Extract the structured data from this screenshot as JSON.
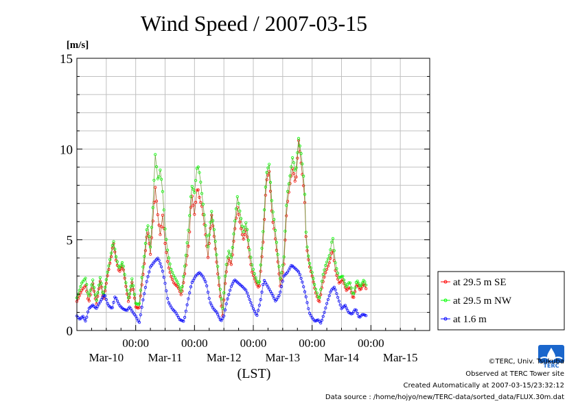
{
  "chart_data": {
    "type": "line",
    "title": "Wind Speed / 2007-03-15",
    "ylabel": "[m/s]",
    "xlabel": "(LST)",
    "ylim": [
      0,
      15
    ],
    "yticks": [
      0,
      5,
      10,
      15
    ],
    "xlim_days": [
      0,
      6
    ],
    "time_labels": [
      "00:00",
      "00:00",
      "00:00",
      "00:00",
      "00:00"
    ],
    "date_labels": [
      "Mar-10",
      "Mar-11",
      "Mar-12",
      "Mar-13",
      "Mar-14",
      "Mar-15"
    ],
    "grid": true,
    "legend_position": "right",
    "series": [
      {
        "name": "at 29.5 m SE",
        "color": "#ff0000",
        "anchors": [
          [
            0.0,
            1.6
          ],
          [
            0.08,
            2.2
          ],
          [
            0.15,
            2.5
          ],
          [
            0.2,
            1.5
          ],
          [
            0.27,
            2.6
          ],
          [
            0.33,
            1.4
          ],
          [
            0.4,
            2.8
          ],
          [
            0.45,
            1.6
          ],
          [
            0.52,
            3.0
          ],
          [
            0.58,
            4.0
          ],
          [
            0.62,
            4.9
          ],
          [
            0.67,
            3.8
          ],
          [
            0.72,
            3.2
          ],
          [
            0.78,
            3.6
          ],
          [
            0.83,
            2.5
          ],
          [
            0.88,
            1.5
          ],
          [
            0.94,
            2.7
          ],
          [
            1.0,
            1.3
          ],
          [
            1.06,
            1.2
          ],
          [
            1.1,
            2.4
          ],
          [
            1.15,
            3.8
          ],
          [
            1.2,
            5.6
          ],
          [
            1.25,
            4.2
          ],
          [
            1.3,
            6.4
          ],
          [
            1.33,
            8.0
          ],
          [
            1.38,
            6.2
          ],
          [
            1.42,
            5.2
          ],
          [
            1.46,
            6.4
          ],
          [
            1.5,
            4.8
          ],
          [
            1.55,
            3.6
          ],
          [
            1.6,
            3.0
          ],
          [
            1.65,
            2.6
          ],
          [
            1.72,
            2.4
          ],
          [
            1.78,
            1.9
          ],
          [
            1.85,
            3.5
          ],
          [
            1.91,
            5.0
          ],
          [
            1.95,
            7.6
          ],
          [
            2.0,
            6.4
          ],
          [
            2.05,
            8.0
          ],
          [
            2.09,
            7.2
          ],
          [
            2.13,
            6.8
          ],
          [
            2.18,
            5.5
          ],
          [
            2.23,
            4.0
          ],
          [
            2.29,
            6.4
          ],
          [
            2.34,
            5.0
          ],
          [
            2.38,
            3.6
          ],
          [
            2.44,
            1.8
          ],
          [
            2.48,
            0.8
          ],
          [
            2.53,
            3.0
          ],
          [
            2.58,
            4.0
          ],
          [
            2.63,
            3.6
          ],
          [
            2.68,
            5.4
          ],
          [
            2.73,
            6.8
          ],
          [
            2.78,
            5.8
          ],
          [
            2.83,
            5.0
          ],
          [
            2.88,
            5.6
          ],
          [
            2.93,
            4.2
          ],
          [
            2.98,
            3.2
          ],
          [
            3.05,
            2.6
          ],
          [
            3.1,
            2.3
          ],
          [
            3.17,
            5.0
          ],
          [
            3.22,
            8.2
          ],
          [
            3.27,
            8.8
          ],
          [
            3.32,
            6.2
          ],
          [
            3.36,
            5.5
          ],
          [
            3.41,
            4.0
          ],
          [
            3.46,
            2.4
          ],
          [
            3.52,
            3.6
          ],
          [
            3.57,
            6.8
          ],
          [
            3.62,
            8.0
          ],
          [
            3.67,
            9.0
          ],
          [
            3.72,
            8.0
          ],
          [
            3.77,
            10.5
          ],
          [
            3.82,
            9.0
          ],
          [
            3.87,
            7.5
          ],
          [
            3.9,
            4.8
          ],
          [
            3.95,
            3.6
          ],
          [
            4.0,
            3.0
          ],
          [
            4.05,
            2.2
          ],
          [
            4.12,
            1.5
          ],
          [
            4.18,
            2.6
          ],
          [
            4.23,
            3.2
          ],
          [
            4.3,
            3.8
          ],
          [
            4.35,
            4.5
          ],
          [
            4.4,
            3.2
          ],
          [
            4.46,
            2.6
          ],
          [
            4.52,
            2.8
          ],
          [
            4.58,
            2.2
          ],
          [
            4.64,
            2.4
          ],
          [
            4.7,
            1.7
          ],
          [
            4.76,
            2.6
          ],
          [
            4.82,
            2.2
          ],
          [
            4.88,
            2.6
          ],
          [
            4.93,
            2.2
          ]
        ]
      },
      {
        "name": "at 29.5 m NW",
        "color": "#00ff00",
        "anchors": [
          [
            0.0,
            1.8
          ],
          [
            0.08,
            2.6
          ],
          [
            0.15,
            2.9
          ],
          [
            0.2,
            1.8
          ],
          [
            0.27,
            2.8
          ],
          [
            0.33,
            1.6
          ],
          [
            0.4,
            3.0
          ],
          [
            0.45,
            1.8
          ],
          [
            0.52,
            3.2
          ],
          [
            0.58,
            4.2
          ],
          [
            0.62,
            5.0
          ],
          [
            0.67,
            4.0
          ],
          [
            0.72,
            3.4
          ],
          [
            0.78,
            3.8
          ],
          [
            0.83,
            2.7
          ],
          [
            0.88,
            1.7
          ],
          [
            0.94,
            2.9
          ],
          [
            1.0,
            1.5
          ],
          [
            1.06,
            1.4
          ],
          [
            1.1,
            2.8
          ],
          [
            1.15,
            4.2
          ],
          [
            1.2,
            6.0
          ],
          [
            1.25,
            4.6
          ],
          [
            1.3,
            7.2
          ],
          [
            1.33,
            9.8
          ],
          [
            1.38,
            8.2
          ],
          [
            1.42,
            8.9
          ],
          [
            1.46,
            7.6
          ],
          [
            1.5,
            5.6
          ],
          [
            1.55,
            4.2
          ],
          [
            1.6,
            3.4
          ],
          [
            1.65,
            3.0
          ],
          [
            1.72,
            2.6
          ],
          [
            1.78,
            2.1
          ],
          [
            1.85,
            4.0
          ],
          [
            1.91,
            6.0
          ],
          [
            1.95,
            8.0
          ],
          [
            2.0,
            7.6
          ],
          [
            2.05,
            9.2
          ],
          [
            2.09,
            8.6
          ],
          [
            2.13,
            7.4
          ],
          [
            2.18,
            6.0
          ],
          [
            2.23,
            4.6
          ],
          [
            2.29,
            6.6
          ],
          [
            2.34,
            5.4
          ],
          [
            2.38,
            4.0
          ],
          [
            2.44,
            2.2
          ],
          [
            2.48,
            1.2
          ],
          [
            2.53,
            3.4
          ],
          [
            2.58,
            4.4
          ],
          [
            2.63,
            4.0
          ],
          [
            2.68,
            5.8
          ],
          [
            2.73,
            7.4
          ],
          [
            2.78,
            6.4
          ],
          [
            2.83,
            5.4
          ],
          [
            2.88,
            6.0
          ],
          [
            2.93,
            4.6
          ],
          [
            2.98,
            3.6
          ],
          [
            3.05,
            2.8
          ],
          [
            3.1,
            2.5
          ],
          [
            3.17,
            5.6
          ],
          [
            3.22,
            8.6
          ],
          [
            3.27,
            9.2
          ],
          [
            3.32,
            6.8
          ],
          [
            3.36,
            6.0
          ],
          [
            3.41,
            4.4
          ],
          [
            3.46,
            2.8
          ],
          [
            3.52,
            4.0
          ],
          [
            3.57,
            7.4
          ],
          [
            3.62,
            8.4
          ],
          [
            3.67,
            9.6
          ],
          [
            3.72,
            8.6
          ],
          [
            3.77,
            10.6
          ],
          [
            3.82,
            9.6
          ],
          [
            3.87,
            8.0
          ],
          [
            3.9,
            5.0
          ],
          [
            3.95,
            3.8
          ],
          [
            4.0,
            3.2
          ],
          [
            4.05,
            2.4
          ],
          [
            4.12,
            1.7
          ],
          [
            4.18,
            3.0
          ],
          [
            4.23,
            3.6
          ],
          [
            4.3,
            4.2
          ],
          [
            4.35,
            5.2
          ],
          [
            4.4,
            3.6
          ],
          [
            4.46,
            2.9
          ],
          [
            4.52,
            3.0
          ],
          [
            4.58,
            2.4
          ],
          [
            4.64,
            2.7
          ],
          [
            4.7,
            1.9
          ],
          [
            4.76,
            2.8
          ],
          [
            4.82,
            2.4
          ],
          [
            4.88,
            2.8
          ],
          [
            4.93,
            2.4
          ]
        ]
      },
      {
        "name": "at 1.6 m",
        "color": "#0000ff",
        "anchors": [
          [
            0.0,
            0.8
          ],
          [
            0.05,
            0.6
          ],
          [
            0.1,
            0.8
          ],
          [
            0.15,
            0.5
          ],
          [
            0.2,
            1.2
          ],
          [
            0.27,
            1.4
          ],
          [
            0.33,
            1.2
          ],
          [
            0.4,
            1.6
          ],
          [
            0.47,
            2.0
          ],
          [
            0.53,
            1.4
          ],
          [
            0.6,
            1.2
          ],
          [
            0.65,
            1.9
          ],
          [
            0.72,
            1.4
          ],
          [
            0.78,
            1.2
          ],
          [
            0.85,
            1.1
          ],
          [
            0.9,
            1.3
          ],
          [
            0.95,
            1.0
          ],
          [
            1.0,
            0.8
          ],
          [
            1.06,
            0.4
          ],
          [
            1.12,
            1.6
          ],
          [
            1.18,
            2.6
          ],
          [
            1.25,
            3.5
          ],
          [
            1.32,
            3.8
          ],
          [
            1.38,
            4.0
          ],
          [
            1.45,
            3.4
          ],
          [
            1.5,
            2.6
          ],
          [
            1.55,
            1.6
          ],
          [
            1.62,
            1.2
          ],
          [
            1.68,
            1.0
          ],
          [
            1.75,
            0.6
          ],
          [
            1.82,
            0.5
          ],
          [
            1.88,
            1.5
          ],
          [
            1.95,
            2.6
          ],
          [
            2.02,
            3.0
          ],
          [
            2.08,
            3.2
          ],
          [
            2.14,
            3.0
          ],
          [
            2.2,
            2.6
          ],
          [
            2.26,
            1.6
          ],
          [
            2.32,
            1.2
          ],
          [
            2.38,
            1.0
          ],
          [
            2.45,
            0.5
          ],
          [
            2.5,
            0.8
          ],
          [
            2.55,
            1.6
          ],
          [
            2.62,
            2.4
          ],
          [
            2.68,
            2.8
          ],
          [
            2.75,
            2.6
          ],
          [
            2.82,
            2.4
          ],
          [
            2.88,
            2.2
          ],
          [
            2.95,
            1.6
          ],
          [
            3.0,
            1.2
          ],
          [
            3.06,
            0.8
          ],
          [
            3.12,
            1.6
          ],
          [
            3.18,
            2.8
          ],
          [
            3.25,
            2.4
          ],
          [
            3.32,
            2.0
          ],
          [
            3.38,
            1.6
          ],
          [
            3.45,
            2.0
          ],
          [
            3.52,
            3.0
          ],
          [
            3.58,
            3.2
          ],
          [
            3.65,
            3.6
          ],
          [
            3.72,
            3.4
          ],
          [
            3.78,
            3.2
          ],
          [
            3.84,
            2.6
          ],
          [
            3.9,
            1.8
          ],
          [
            3.95,
            1.0
          ],
          [
            4.0,
            0.7
          ],
          [
            4.05,
            0.5
          ],
          [
            4.1,
            0.6
          ],
          [
            4.15,
            0.4
          ],
          [
            4.2,
            0.9
          ],
          [
            4.26,
            1.6
          ],
          [
            4.32,
            2.2
          ],
          [
            4.38,
            2.4
          ],
          [
            4.44,
            1.8
          ],
          [
            4.5,
            1.2
          ],
          [
            4.56,
            1.4
          ],
          [
            4.62,
            1.0
          ],
          [
            4.68,
            0.9
          ],
          [
            4.74,
            1.2
          ],
          [
            4.8,
            0.7
          ],
          [
            4.86,
            0.9
          ],
          [
            4.93,
            0.8
          ]
        ]
      }
    ]
  },
  "credits": {
    "copyright": "©TERC, Univ. Tsukuba",
    "site": "Observed at TERC Tower site",
    "created": "Created Automatically at 2007-03-15/23:32:12",
    "source": "Data source : /home/hojyo/new/TERC-data/sorted_data/FLUX.30m.dat"
  },
  "logo": {
    "text": "TERC",
    "color": "#1a66cc"
  }
}
